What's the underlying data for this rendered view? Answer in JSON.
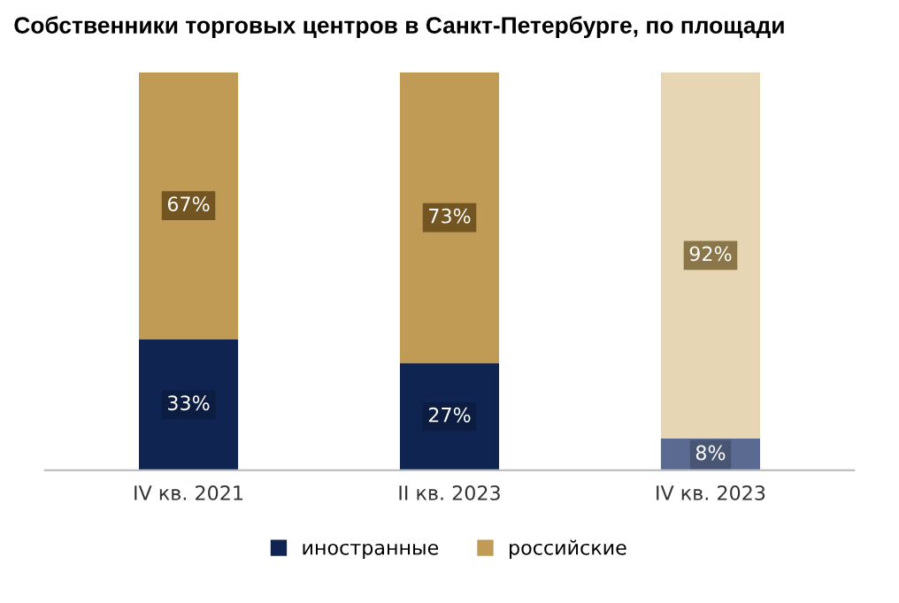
{
  "chart_data": {
    "type": "bar",
    "title": "Собственники торговых центров в Санкт-Петербурге, по площади",
    "categories": [
      "IV кв. 2021",
      "II кв. 2023",
      "IV кв. 2023"
    ],
    "stacked": true,
    "legend": "bottom",
    "series": [
      {
        "name": "иностранные",
        "color": "#0f2451",
        "colors": [
          "#0f2451",
          "#0f2451",
          "#5a6a90"
        ],
        "values": [
          33,
          27,
          8
        ],
        "value_labels": [
          "33%",
          "27%",
          "8%"
        ]
      },
      {
        "name": "российские",
        "color": "#bf9b56",
        "colors": [
          "#bf9b56",
          "#bf9b56",
          "#e6d6b4"
        ],
        "values": [
          67,
          73,
          92
        ],
        "value_labels": [
          "67%",
          "73%",
          "92%"
        ]
      }
    ]
  }
}
